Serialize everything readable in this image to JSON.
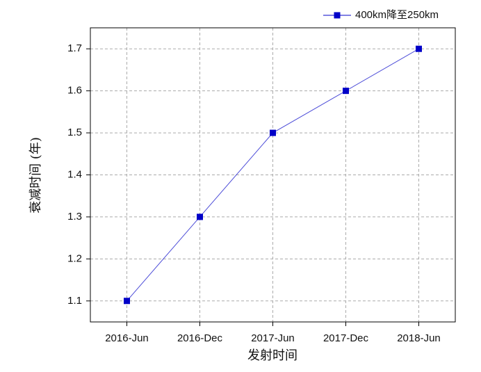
{
  "chart_data": {
    "type": "line",
    "x_label": "发射时间",
    "y_label": "衰减时间 (年)",
    "categories": [
      "2016-Jun",
      "2016-Dec",
      "2017-Jun",
      "2017-Dec",
      "2018-Jun"
    ],
    "series": [
      {
        "name": "400km降至250km",
        "color": "#0000c8",
        "values": [
          1.1,
          1.3,
          1.5,
          1.6,
          1.7
        ]
      }
    ],
    "ylim": [
      1.05,
      1.75
    ],
    "yticks": [
      1.1,
      1.2,
      1.3,
      1.4,
      1.5,
      1.6,
      1.7
    ],
    "grid": true,
    "legend": "upper right"
  }
}
